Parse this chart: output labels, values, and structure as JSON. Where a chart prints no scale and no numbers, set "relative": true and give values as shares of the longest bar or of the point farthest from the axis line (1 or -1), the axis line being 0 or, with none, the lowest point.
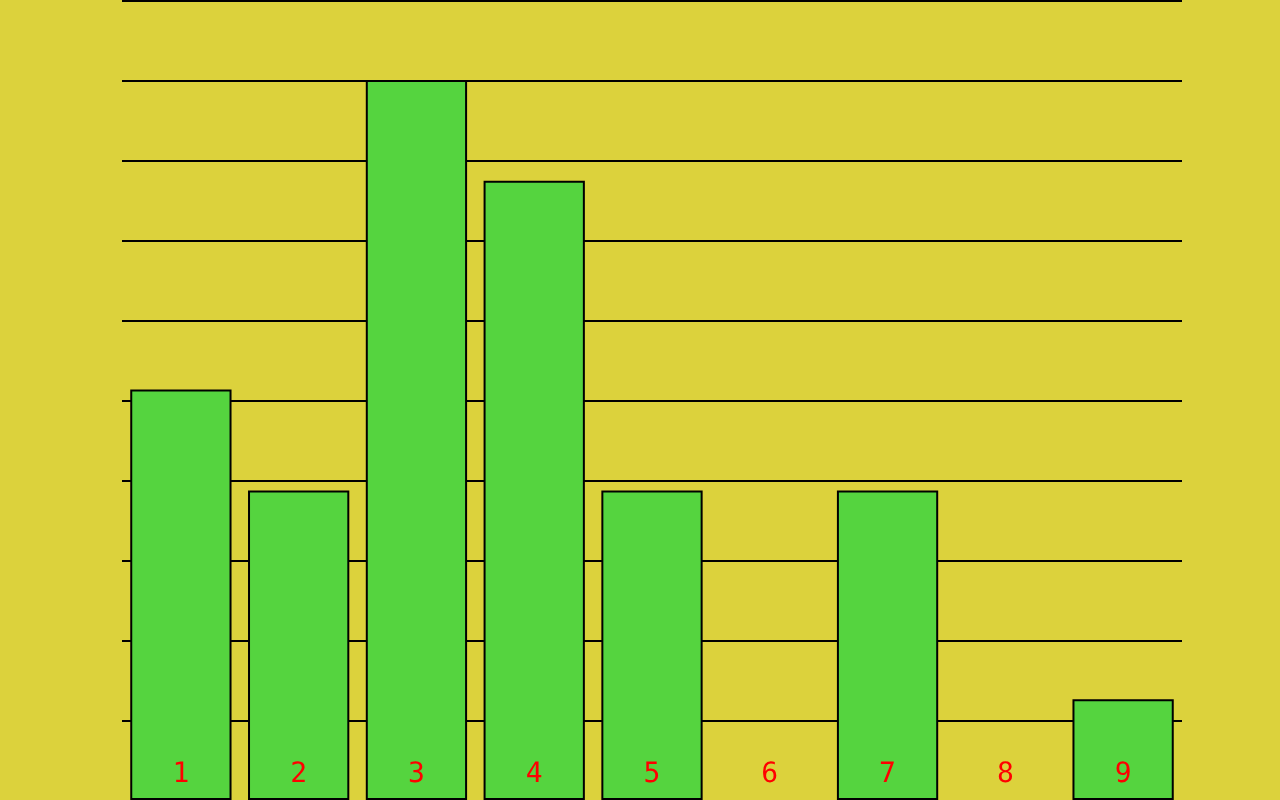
{
  "chart_data": {
    "type": "bar",
    "relative": true,
    "grid": "y",
    "categories": [
      "1",
      "2",
      "3",
      "4",
      "5",
      "6",
      "7",
      "8",
      "9"
    ],
    "values": [
      0.57,
      0.43,
      1,
      0.86,
      0.43,
      0,
      0.43,
      0,
      0.14
    ],
    "color": "#55d43f"
  }
}
